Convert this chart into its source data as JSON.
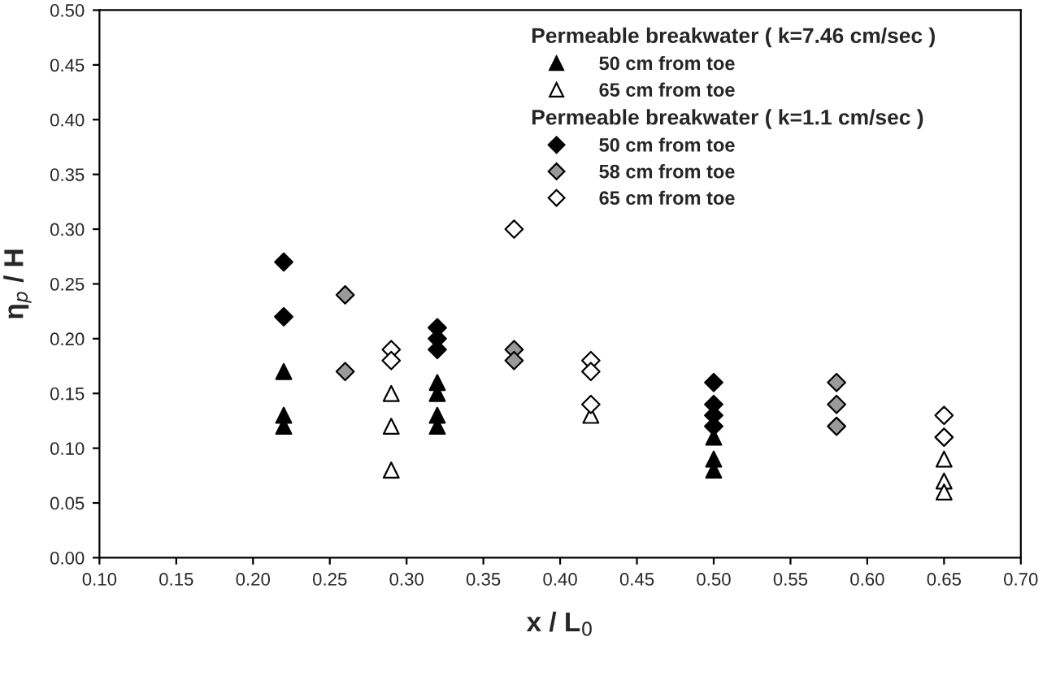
{
  "chart_data": {
    "type": "scatter",
    "xlabel": "x / L$_{0}$",
    "ylabel": "η$_{p}$ / H",
    "annotations": [
      "Permeable breakwater ( k=7.46 cm/sec )",
      "Permeable breakwater ( k=1.1 cm/sec )"
    ],
    "series": [
      {
        "name": "50 cm from toe",
        "color": "#000000",
        "marker": "triangle",
        "x": [
          0.22,
          0.22,
          0.22,
          0.32,
          0.32,
          0.32,
          0.32,
          0.5,
          0.5,
          0.5
        ],
        "values": [
          0.17,
          0.13,
          0.12,
          0.16,
          0.15,
          0.13,
          0.12,
          0.11,
          0.09,
          0.08
        ]
      },
      {
        "name": "65 cm from toe",
        "color": "#ffffff",
        "marker": "triangle",
        "x": [
          0.29,
          0.29,
          0.29,
          0.42,
          0.65,
          0.65,
          0.65
        ],
        "values": [
          0.15,
          0.12,
          0.08,
          0.13,
          0.09,
          0.07,
          0.06
        ]
      },
      {
        "name": "50 cm from toe",
        "color": "#000000",
        "marker": "diamond",
        "x": [
          0.22,
          0.22,
          0.32,
          0.32,
          0.32,
          0.5,
          0.5,
          0.5,
          0.5
        ],
        "values": [
          0.27,
          0.22,
          0.21,
          0.2,
          0.19,
          0.16,
          0.14,
          0.13,
          0.12
        ]
      },
      {
        "name": "58 cm from toe",
        "color": "#9a9a9a",
        "marker": "diamond",
        "x": [
          0.26,
          0.26,
          0.37,
          0.37,
          0.58,
          0.58,
          0.58
        ],
        "values": [
          0.24,
          0.17,
          0.19,
          0.18,
          0.16,
          0.14,
          0.12
        ]
      },
      {
        "name": "65 cm from toe",
        "color": "#ffffff",
        "marker": "diamond",
        "x": [
          0.29,
          0.29,
          0.37,
          0.42,
          0.42,
          0.42,
          0.65,
          0.65
        ],
        "values": [
          0.19,
          0.18,
          0.3,
          0.18,
          0.17,
          0.14,
          0.13,
          0.11
        ]
      }
    ],
    "xlim": [
      0.1,
      0.7
    ],
    "ylim": [
      0,
      0.5
    ],
    "xticks": [
      {
        "value": 0.1,
        "label": "0.10"
      },
      {
        "value": 0.15,
        "label": "0.15"
      },
      {
        "value": 0.2,
        "label": "0.20"
      },
      {
        "value": 0.25,
        "label": "0.25"
      },
      {
        "value": 0.3,
        "label": "0.30"
      },
      {
        "value": 0.35,
        "label": "0.35"
      },
      {
        "value": 0.4,
        "label": "0.40"
      },
      {
        "value": 0.45,
        "label": "0.45"
      },
      {
        "value": 0.5,
        "label": "0.50"
      },
      {
        "value": 0.55,
        "label": "0.55"
      },
      {
        "value": 0.6,
        "label": "0.60"
      },
      {
        "value": 0.65,
        "label": "0.65"
      },
      {
        "value": 0.7,
        "label": "0.70"
      }
    ],
    "yticks": [
      {
        "value": 0,
        "label": "0.00"
      },
      {
        "value": 0.05,
        "label": "0.05"
      },
      {
        "value": 0.1,
        "label": "0.10"
      },
      {
        "value": 0.15,
        "label": "0.15"
      },
      {
        "value": 0.2,
        "label": "0.20"
      },
      {
        "value": 0.25,
        "label": "0.25"
      },
      {
        "value": 0.3,
        "label": "0.30"
      },
      {
        "value": 0.35,
        "label": "0.35"
      },
      {
        "value": 0.4,
        "label": "0.40"
      },
      {
        "value": 0.45,
        "label": "0.45"
      },
      {
        "value": 0.5,
        "label": "0.50"
      }
    ],
    "grid": false,
    "legend": "top right"
  }
}
